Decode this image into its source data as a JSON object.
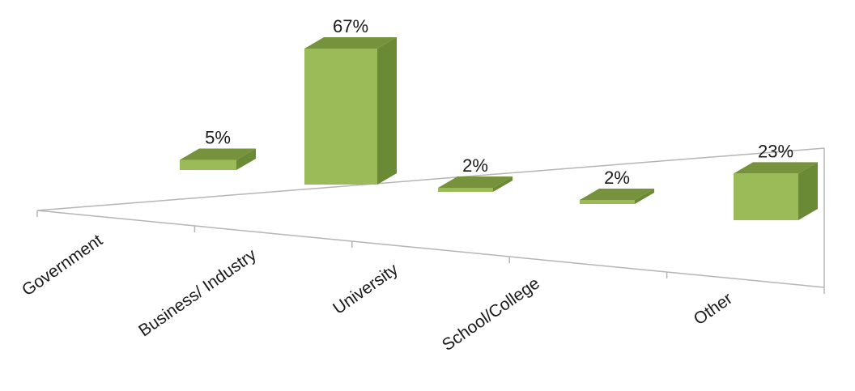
{
  "chart_data": {
    "type": "bar",
    "style": "3d-perspective",
    "categories": [
      "Government",
      "Business/ Industry",
      "University",
      "School/College",
      "Other"
    ],
    "values": [
      5,
      67,
      2,
      2,
      23
    ],
    "value_labels": [
      "5%",
      "67%",
      "2%",
      "2%",
      "23%"
    ],
    "unit": "%",
    "grid": false,
    "legend": "none",
    "colors": {
      "bar_front": "#9bbb59",
      "bar_side": "#6b8a35",
      "bar_top": "#76923c",
      "floor_line": "#b5b5b5"
    }
  }
}
